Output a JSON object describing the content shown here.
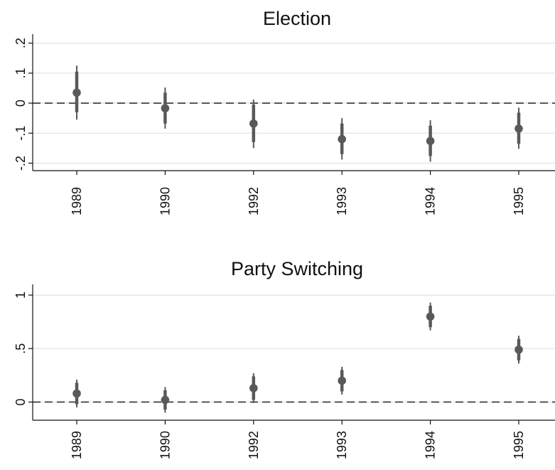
{
  "chart_data": [
    {
      "type": "scatter",
      "title": "Election",
      "categories": [
        "1989",
        "1990",
        "1992",
        "1993",
        "1994",
        "1995"
      ],
      "yticks": [
        {
          "value": 0.2,
          "label": ".2"
        },
        {
          "value": 0.1,
          "label": ".1"
        },
        {
          "value": 0,
          "label": "0"
        },
        {
          "value": -0.1,
          "label": "-.1"
        },
        {
          "value": -0.2,
          "label": "-.2"
        }
      ],
      "ylim": [
        -0.225,
        0.23
      ],
      "reference_line": 0,
      "points": [
        {
          "x": "1989",
          "estimate": 0.035,
          "ci_inner": [
            -0.03,
            0.105
          ],
          "ci_outer": [
            -0.055,
            0.125
          ]
        },
        {
          "x": "1990",
          "estimate": -0.017,
          "ci_inner": [
            -0.068,
            0.035
          ],
          "ci_outer": [
            -0.085,
            0.052
          ]
        },
        {
          "x": "1992",
          "estimate": -0.068,
          "ci_inner": [
            -0.13,
            -0.005
          ],
          "ci_outer": [
            -0.15,
            0.012
          ]
        },
        {
          "x": "1993",
          "estimate": -0.12,
          "ci_inner": [
            -0.17,
            -0.068
          ],
          "ci_outer": [
            -0.188,
            -0.05
          ]
        },
        {
          "x": "1994",
          "estimate": -0.126,
          "ci_inner": [
            -0.176,
            -0.075
          ],
          "ci_outer": [
            -0.195,
            -0.057
          ]
        },
        {
          "x": "1995",
          "estimate": -0.085,
          "ci_inner": [
            -0.135,
            -0.032
          ],
          "ci_outer": [
            -0.152,
            -0.015
          ]
        }
      ],
      "grid": true,
      "colors": {
        "marker": "#595959",
        "grid": "#e4e4e4",
        "reference": "#333333"
      }
    },
    {
      "type": "scatter",
      "title": "Party Switching",
      "categories": [
        "1989",
        "1990",
        "1992",
        "1993",
        "1994",
        "1995"
      ],
      "yticks": [
        {
          "value": 1,
          "label": "1"
        },
        {
          "value": 0.5,
          "label": ".5"
        },
        {
          "value": 0,
          "label": "0"
        }
      ],
      "ylim": [
        -0.17,
        1.1
      ],
      "reference_line": 0,
      "points": [
        {
          "x": "1989",
          "estimate": 0.08,
          "ci_inner": [
            -0.02,
            0.18
          ],
          "ci_outer": [
            -0.05,
            0.21
          ]
        },
        {
          "x": "1990",
          "estimate": 0.02,
          "ci_inner": [
            -0.07,
            0.11
          ],
          "ci_outer": [
            -0.1,
            0.14
          ]
        },
        {
          "x": "1992",
          "estimate": 0.13,
          "ci_inner": [
            0.02,
            0.24
          ],
          "ci_outer": [
            -0.01,
            0.27
          ]
        },
        {
          "x": "1993",
          "estimate": 0.2,
          "ci_inner": [
            0.1,
            0.3
          ],
          "ci_outer": [
            0.07,
            0.33
          ]
        },
        {
          "x": "1994",
          "estimate": 0.8,
          "ci_inner": [
            0.7,
            0.9
          ],
          "ci_outer": [
            0.67,
            0.93
          ]
        },
        {
          "x": "1995",
          "estimate": 0.49,
          "ci_inner": [
            0.39,
            0.59
          ],
          "ci_outer": [
            0.36,
            0.62
          ]
        }
      ],
      "grid": true,
      "colors": {
        "marker": "#595959",
        "grid": "#e4e4e4",
        "reference": "#333333"
      }
    }
  ]
}
